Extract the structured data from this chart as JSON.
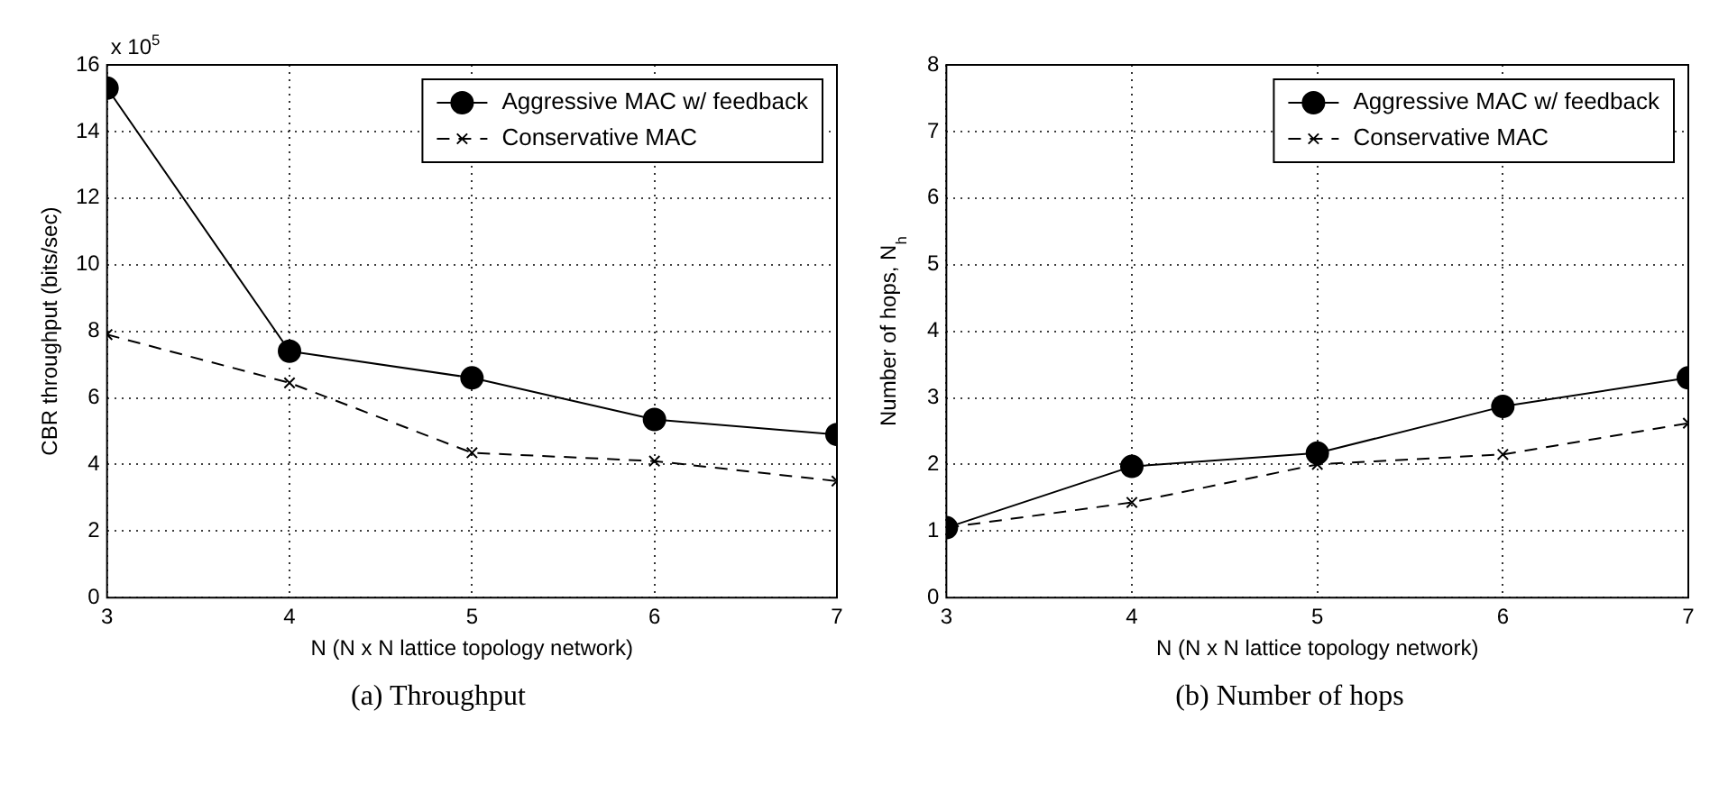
{
  "chart_data": [
    {
      "type": "line",
      "xlabel": "N (N x N lattice topology network)",
      "ylabel": "CBR throughput (bits/sec)",
      "annotations": [
        "x 10$^{5}$",
        "(a) Throughput"
      ],
      "x": [
        3,
        4,
        5,
        6,
        7
      ],
      "series": [
        {
          "name": "Aggressive MAC w/ feedback",
          "color": "#000000",
          "marker": "circle",
          "line_style": "solid",
          "values": [
            15.3,
            7.4,
            6.6,
            5.35,
            4.9
          ]
        },
        {
          "name": "Conservative MAC",
          "color": "#000000",
          "marker": "cross",
          "line_style": "dashed",
          "values": [
            7.9,
            6.45,
            4.35,
            4.1,
            3.5
          ]
        }
      ],
      "xlim": [
        3,
        7
      ],
      "xticks": [
        3,
        4,
        5,
        6,
        7
      ],
      "ylim": [
        0,
        16
      ],
      "yticks": [
        0,
        2,
        4,
        6,
        8,
        10,
        12,
        14,
        16
      ],
      "grid": true,
      "legend": "top right"
    },
    {
      "type": "line",
      "xlabel": "N (N x N lattice topology network)",
      "ylabel": "Number of hops, N$_{h}$",
      "annotations": [
        "(b) Number of hops"
      ],
      "x": [
        3,
        4,
        5,
        6,
        7
      ],
      "series": [
        {
          "name": "Aggressive MAC w/ feedback",
          "color": "#000000",
          "marker": "circle",
          "line_style": "solid",
          "values": [
            1.05,
            1.97,
            2.17,
            2.87,
            3.3
          ]
        },
        {
          "name": "Conservative MAC",
          "color": "#000000",
          "marker": "cross",
          "line_style": "dashed",
          "values": [
            1.05,
            1.43,
            2.0,
            2.15,
            2.62
          ]
        }
      ],
      "xlim": [
        3,
        7
      ],
      "xticks": [
        3,
        4,
        5,
        6,
        7
      ],
      "ylim": [
        0,
        8
      ],
      "yticks": [
        0,
        1,
        2,
        3,
        4,
        5,
        6,
        7,
        8
      ],
      "grid": true,
      "legend": "top right"
    }
  ]
}
